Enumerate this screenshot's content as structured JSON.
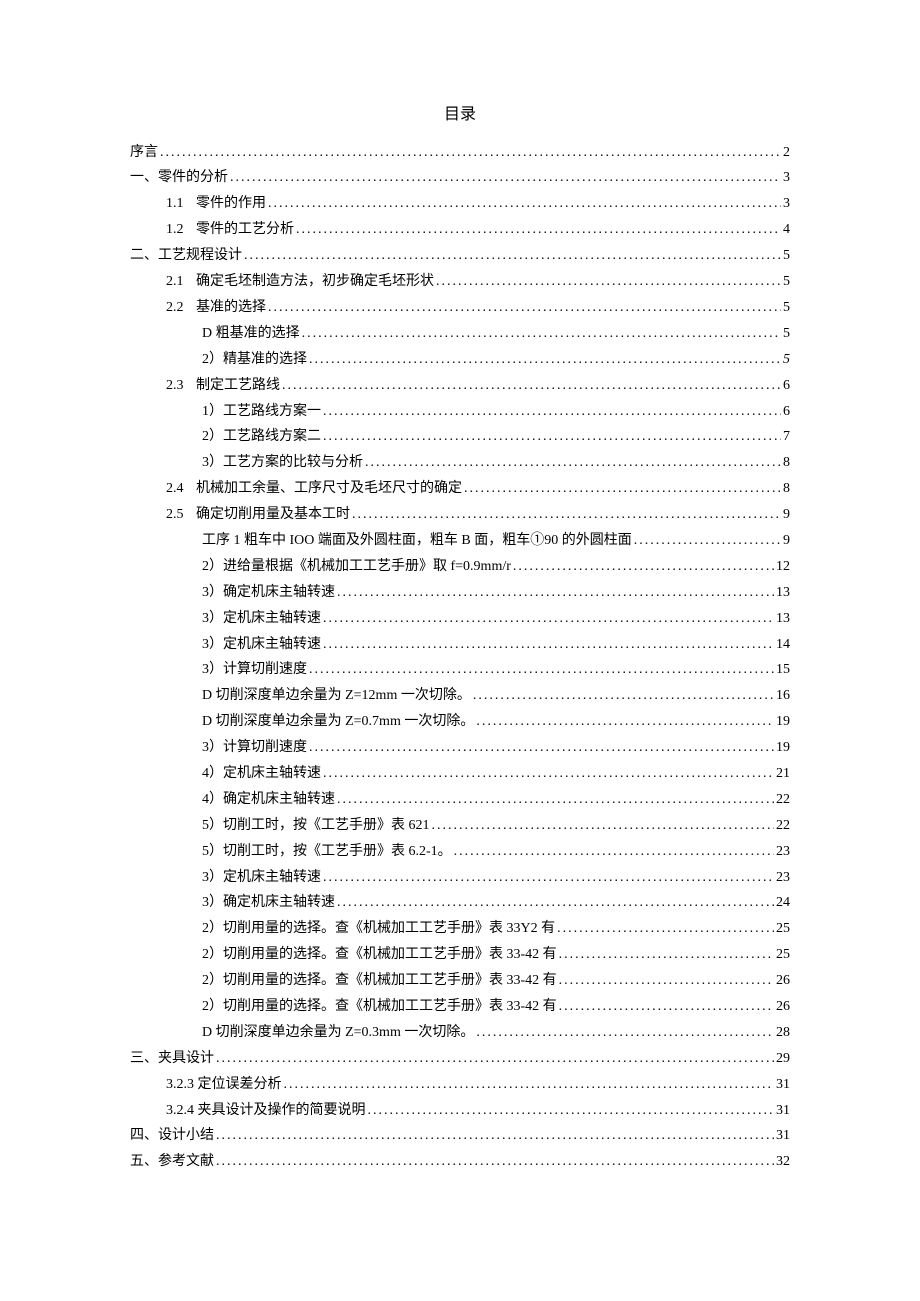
{
  "title": "目录",
  "entries": [
    {
      "indent": 0,
      "num": "",
      "label": "序言",
      "page": "2"
    },
    {
      "indent": 0,
      "num": "",
      "label": "一、零件的分析",
      "page": "3"
    },
    {
      "indent": 1,
      "num": "1.1",
      "label": "零件的作用",
      "page": "3"
    },
    {
      "indent": 1,
      "num": "1.2",
      "label": "零件的工艺分析",
      "page": "4"
    },
    {
      "indent": 0,
      "num": "",
      "label": "二、工艺规程设计",
      "page": "5"
    },
    {
      "indent": 1,
      "num": "2.1",
      "label": "确定毛坯制造方法，初步确定毛坯形状",
      "page": "5"
    },
    {
      "indent": 1,
      "num": "2.2",
      "label": "基准的选择",
      "page": "5"
    },
    {
      "indent": 2,
      "num": "",
      "label": "D 粗基准的选择",
      "page": "5"
    },
    {
      "indent": 2,
      "num": "",
      "label": "2）精基准的选择",
      "page": "5",
      "pageItalic": true
    },
    {
      "indent": 1,
      "num": "2.3",
      "label": "制定工艺路线",
      "page": "6"
    },
    {
      "indent": 2,
      "num": "",
      "label": "1）工艺路线方案一",
      "page": "6"
    },
    {
      "indent": 2,
      "num": "",
      "label": "2）工艺路线方案二",
      "page": "7"
    },
    {
      "indent": 2,
      "num": "",
      "label": "3）工艺方案的比较与分析",
      "page": "8"
    },
    {
      "indent": 1,
      "num": "2.4",
      "label": "机械加工余量、工序尺寸及毛坯尺寸的确定",
      "page": "8"
    },
    {
      "indent": 1,
      "num": "2.5",
      "label": "确定切削用量及基本工时",
      "page": "9"
    },
    {
      "indent": 2,
      "num": "",
      "label": "工序 1 粗车中 IOO 端面及外圆柱面，粗车 B 面，粗车①90 的外圆柱面",
      "page": "9"
    },
    {
      "indent": 2,
      "num": "",
      "label": "2）进给量根据《机械加工工艺手册》取 f=0.9mm/r",
      "page": "12"
    },
    {
      "indent": 2,
      "num": "",
      "label": "3）确定机床主轴转速",
      "page": "13"
    },
    {
      "indent": 2,
      "num": "",
      "label": "3）定机床主轴转速",
      "page": "13"
    },
    {
      "indent": 2,
      "num": "",
      "label": "3）定机床主轴转速",
      "page": "14"
    },
    {
      "indent": 2,
      "num": "",
      "label": "3）计算切削速度",
      "page": "15"
    },
    {
      "indent": 2,
      "num": "",
      "label": "D 切削深度单边余量为 Z=12mm 一次切除。",
      "page": "16"
    },
    {
      "indent": 2,
      "num": "",
      "label": "D 切削深度单边余量为 Z=0.7mm 一次切除。",
      "page": "19"
    },
    {
      "indent": 2,
      "num": "",
      "label": "3）计算切削速度",
      "page": "19"
    },
    {
      "indent": 2,
      "num": "",
      "label": "4）定机床主轴转速",
      "page": "21"
    },
    {
      "indent": 2,
      "num": "",
      "label": "4）确定机床主轴转速",
      "page": "22"
    },
    {
      "indent": 2,
      "num": "",
      "label": "5）切削工时，按《工艺手册》表 621",
      "page": "22"
    },
    {
      "indent": 2,
      "num": "",
      "label": "5）切削工时，按《工艺手册》表 6.2-1。",
      "page": "23"
    },
    {
      "indent": 2,
      "num": "",
      "label": "3）定机床主轴转速",
      "page": "23"
    },
    {
      "indent": 2,
      "num": "",
      "label": "3）确定机床主轴转速",
      "page": "24"
    },
    {
      "indent": 2,
      "num": "",
      "label": "2）切削用量的选择。查《机械加工工艺手册》表 33Y2 有",
      "page": "25"
    },
    {
      "indent": 2,
      "num": "",
      "label": "2）切削用量的选择。查《机械加工工艺手册》表 33-42 有",
      "page": "25"
    },
    {
      "indent": 2,
      "num": "",
      "label": "2）切削用量的选择。查《机械加工工艺手册》表 33-42 有",
      "page": "26"
    },
    {
      "indent": 2,
      "num": "",
      "label": "2）切削用量的选择。查《机械加工工艺手册》表 33-42 有",
      "page": "26"
    },
    {
      "indent": 2,
      "num": "",
      "label": "D 切削深度单边余量为 Z=0.3mm 一次切除。",
      "page": "28"
    },
    {
      "indent": 0,
      "num": "",
      "label": "三、夹具设计",
      "page": "29"
    },
    {
      "indent": 1,
      "num": "",
      "label": "3.2.3 定位误差分析",
      "page": "31"
    },
    {
      "indent": 1,
      "num": "",
      "label": "3.2.4 夹具设计及操作的简要说明",
      "page": "31"
    },
    {
      "indent": 0,
      "num": "",
      "label": "四、设计小结",
      "page": "31"
    },
    {
      "indent": 0,
      "num": "",
      "label": "五、参考文献",
      "page": "32"
    }
  ]
}
